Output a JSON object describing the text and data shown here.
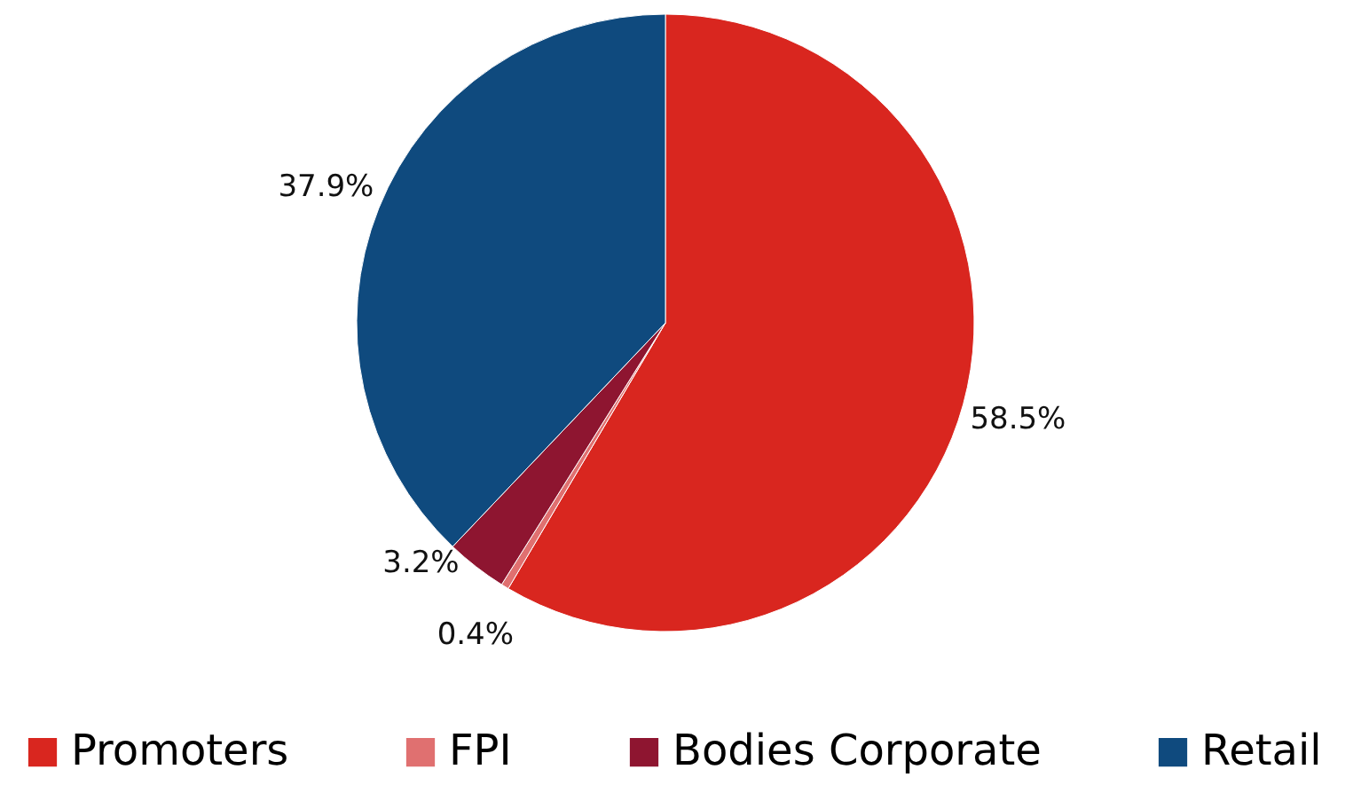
{
  "chart_data": {
    "type": "pie",
    "categories": [
      "Promoters",
      "FPI",
      "Bodies Corporate",
      "Retail"
    ],
    "values": [
      58.5,
      0.4,
      3.2,
      37.9
    ],
    "colors": [
      "#d9261f",
      "#e07070",
      "#8e1530",
      "#0f4a7e"
    ],
    "value_labels": [
      "58.5%",
      "0.4%",
      "3.2%",
      "37.9%"
    ],
    "legend": "bottom"
  }
}
